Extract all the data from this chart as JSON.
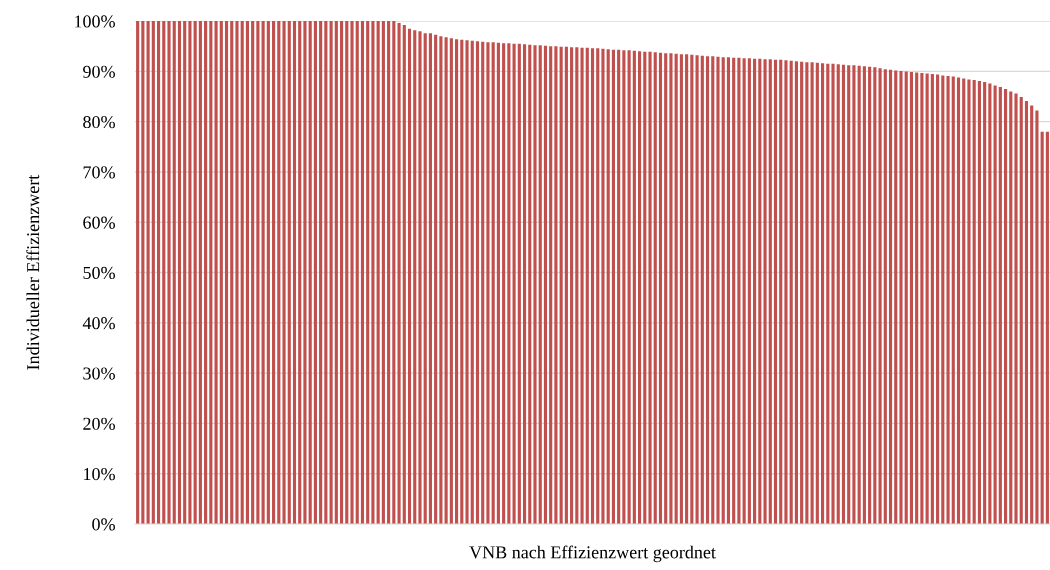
{
  "chart_data": {
    "type": "bar",
    "xlabel": "VNB nach Effizienzwert geordnet",
    "ylabel": "Individueller Effizienzwert",
    "categories": [
      null,
      null,
      null,
      null,
      null,
      null,
      null,
      null,
      null,
      null,
      null,
      null,
      null,
      null,
      null,
      null,
      null,
      null,
      null,
      null,
      null,
      null,
      null,
      null,
      null,
      null,
      null,
      null,
      null,
      null,
      null,
      null,
      null,
      null,
      null,
      null,
      null,
      null,
      null,
      null,
      null,
      null,
      null,
      null,
      null,
      null,
      null,
      null,
      null,
      null,
      null,
      null,
      null,
      null,
      null,
      null,
      null,
      null,
      null,
      null,
      null,
      null,
      null,
      null,
      null,
      null,
      null,
      null,
      null,
      null,
      null,
      null,
      null,
      null,
      null,
      null,
      null,
      null,
      null,
      null,
      null,
      null,
      null,
      null,
      null,
      null,
      null,
      null,
      null,
      null,
      null,
      null,
      null,
      null,
      null,
      null,
      null,
      null,
      null,
      null,
      null,
      null,
      null,
      null,
      null,
      null,
      null,
      null,
      null,
      null,
      null,
      null,
      null,
      null,
      null,
      null,
      null,
      null,
      null,
      null,
      null,
      null,
      null,
      null,
      null,
      null,
      null,
      null,
      null,
      null,
      null,
      null,
      null,
      null,
      null,
      null,
      null,
      null,
      null,
      null,
      null,
      null,
      null,
      null,
      null,
      null,
      null,
      null,
      null,
      null,
      null,
      null,
      null,
      null,
      null,
      null,
      null,
      null,
      null,
      null,
      null,
      null,
      null,
      null,
      null,
      null,
      null,
      null,
      null,
      null,
      null,
      null,
      null,
      null,
      null
    ],
    "values": [
      100,
      100,
      100,
      100,
      100,
      100,
      100,
      100,
      100,
      100,
      100,
      100,
      100,
      100,
      100,
      100,
      100,
      100,
      100,
      100,
      100,
      100,
      100,
      100,
      100,
      100,
      100,
      100,
      100,
      100,
      100,
      100,
      100,
      100,
      100,
      100,
      100,
      100,
      100,
      100,
      100,
      100,
      100,
      100,
      100,
      100,
      100,
      100,
      100,
      100,
      99.6,
      99.2,
      98.5,
      98.2,
      98.0,
      97.6,
      97.6,
      97.3,
      97.0,
      96.8,
      96.6,
      96.4,
      96.3,
      96.2,
      96.1,
      96.0,
      95.9,
      95.8,
      95.8,
      95.7,
      95.6,
      95.6,
      95.5,
      95.5,
      95.4,
      95.3,
      95.2,
      95.2,
      95.1,
      95.0,
      95.0,
      94.9,
      94.9,
      94.8,
      94.8,
      94.7,
      94.7,
      94.6,
      94.6,
      94.5,
      94.4,
      94.3,
      94.3,
      94.2,
      94.2,
      94.1,
      94.0,
      93.9,
      93.9,
      93.8,
      93.7,
      93.6,
      93.6,
      93.5,
      93.4,
      93.4,
      93.3,
      93.2,
      93.1,
      93.0,
      93.0,
      92.9,
      92.8,
      92.8,
      92.7,
      92.7,
      92.6,
      92.6,
      92.5,
      92.5,
      92.4,
      92.4,
      92.3,
      92.3,
      92.2,
      92.1,
      92.0,
      91.9,
      91.8,
      91.8,
      91.7,
      91.6,
      91.5,
      91.5,
      91.4,
      91.3,
      91.2,
      91.2,
      91.1,
      91.0,
      90.9,
      90.8,
      90.6,
      90.4,
      90.3,
      90.2,
      90.1,
      90.0,
      89.9,
      89.8,
      89.7,
      89.6,
      89.5,
      89.4,
      89.2,
      89.1,
      89.0,
      88.8,
      88.6,
      88.4,
      88.3,
      88.1,
      87.9,
      87.6,
      87.2,
      86.9,
      86.5,
      86.0,
      85.6,
      84.9,
      84.1,
      83.2,
      82.2,
      78.0,
      78.0
    ],
    "color": "#c0504d",
    "ylim": [
      0,
      100
    ],
    "yticks": [
      {
        "value": 0,
        "label": "0%"
      },
      {
        "value": 10,
        "label": "10%"
      },
      {
        "value": 20,
        "label": "20%"
      },
      {
        "value": 30,
        "label": "30%"
      },
      {
        "value": 40,
        "label": "40%"
      },
      {
        "value": 50,
        "label": "50%"
      },
      {
        "value": 60,
        "label": "60%"
      },
      {
        "value": 70,
        "label": "70%"
      },
      {
        "value": 80,
        "label": "80%"
      },
      {
        "value": 90,
        "label": "90%"
      },
      {
        "value": 100,
        "label": "100%"
      }
    ],
    "grid": "y"
  }
}
